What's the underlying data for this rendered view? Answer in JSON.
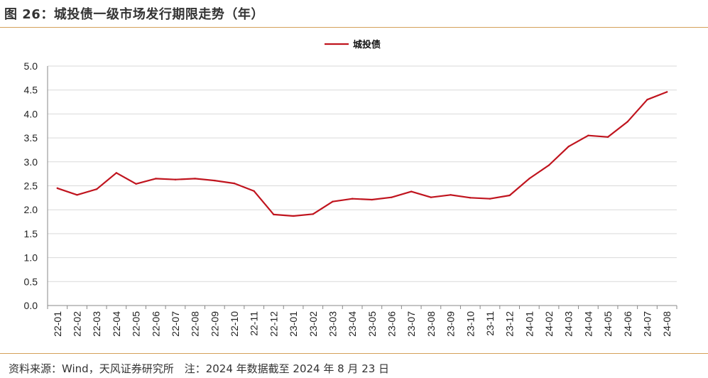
{
  "figure": {
    "title": "图 26：城投债一级市场发行期限走势（年）",
    "source": "资料来源：Wind，天风证券研究所　注：2024 年数据截至 2024 年 8 月 23 日"
  },
  "chart_data": {
    "type": "line",
    "title": "",
    "xlabel": "",
    "ylabel": "",
    "ylim": [
      0,
      5.0
    ],
    "yticks": [
      "0.0",
      "0.5",
      "1.0",
      "1.5",
      "2.0",
      "2.5",
      "3.0",
      "3.5",
      "4.0",
      "4.5",
      "5.0"
    ],
    "grid": "horizontal",
    "legend_position": "top-center",
    "categories": [
      "22-01",
      "22-02",
      "22-03",
      "22-04",
      "22-05",
      "22-06",
      "22-07",
      "22-08",
      "22-09",
      "22-10",
      "22-11",
      "22-12",
      "23-01",
      "23-02",
      "23-03",
      "23-04",
      "23-05",
      "23-06",
      "23-07",
      "23-08",
      "23-09",
      "23-10",
      "23-11",
      "23-12",
      "24-01",
      "24-02",
      "24-03",
      "24-04",
      "24-05",
      "24-06",
      "24-07",
      "24-08"
    ],
    "series": [
      {
        "name": "城投债",
        "color": "#c0141e",
        "values": [
          2.45,
          2.31,
          2.43,
          2.77,
          2.54,
          2.65,
          2.63,
          2.65,
          2.61,
          2.55,
          2.39,
          1.9,
          1.87,
          1.91,
          2.17,
          2.23,
          2.21,
          2.26,
          2.38,
          2.26,
          2.31,
          2.25,
          2.23,
          2.3,
          2.65,
          2.93,
          3.32,
          3.55,
          3.52,
          3.84,
          4.3,
          4.46
        ]
      }
    ]
  }
}
